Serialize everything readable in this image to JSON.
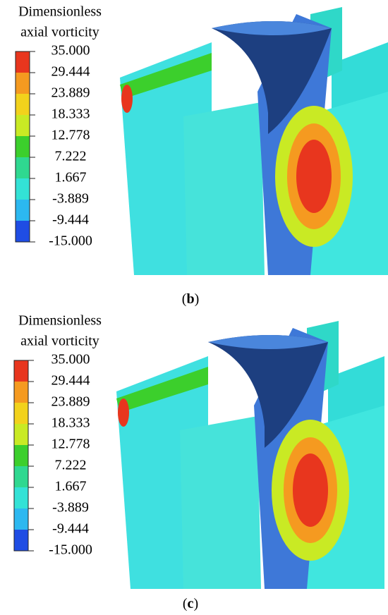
{
  "panels": [
    {
      "legend_title": [
        "Dimensionless",
        "axial vorticity"
      ],
      "legend_labels": [
        "35.000",
        "29.444",
        "23.889",
        "18.333",
        "12.778",
        "7.222",
        "1.667",
        "-3.889",
        "-9.444",
        "-15.000"
      ],
      "legend_colors": [
        "#e8361e",
        "#f59a20",
        "#f2d21c",
        "#c9ea24",
        "#3ccf2c",
        "#2fd890",
        "#33e2d6",
        "#2cb8f0",
        "#1f4de4"
      ],
      "caption": [
        "(",
        "b",
        ")"
      ]
    },
    {
      "legend_title": [
        "Dimensionless",
        "axial vorticity"
      ],
      "legend_labels": [
        "35.000",
        "29.444",
        "23.889",
        "18.333",
        "12.778",
        "7.222",
        "1.667",
        "-3.889",
        "-9.444",
        "-15.000"
      ],
      "legend_colors": [
        "#e8361e",
        "#f59a20",
        "#f2d21c",
        "#c9ea24",
        "#3ccf2c",
        "#2fd890",
        "#33e2d6",
        "#2cb8f0",
        "#1f4de4"
      ],
      "caption": [
        "(",
        "c",
        ")"
      ]
    }
  ]
}
